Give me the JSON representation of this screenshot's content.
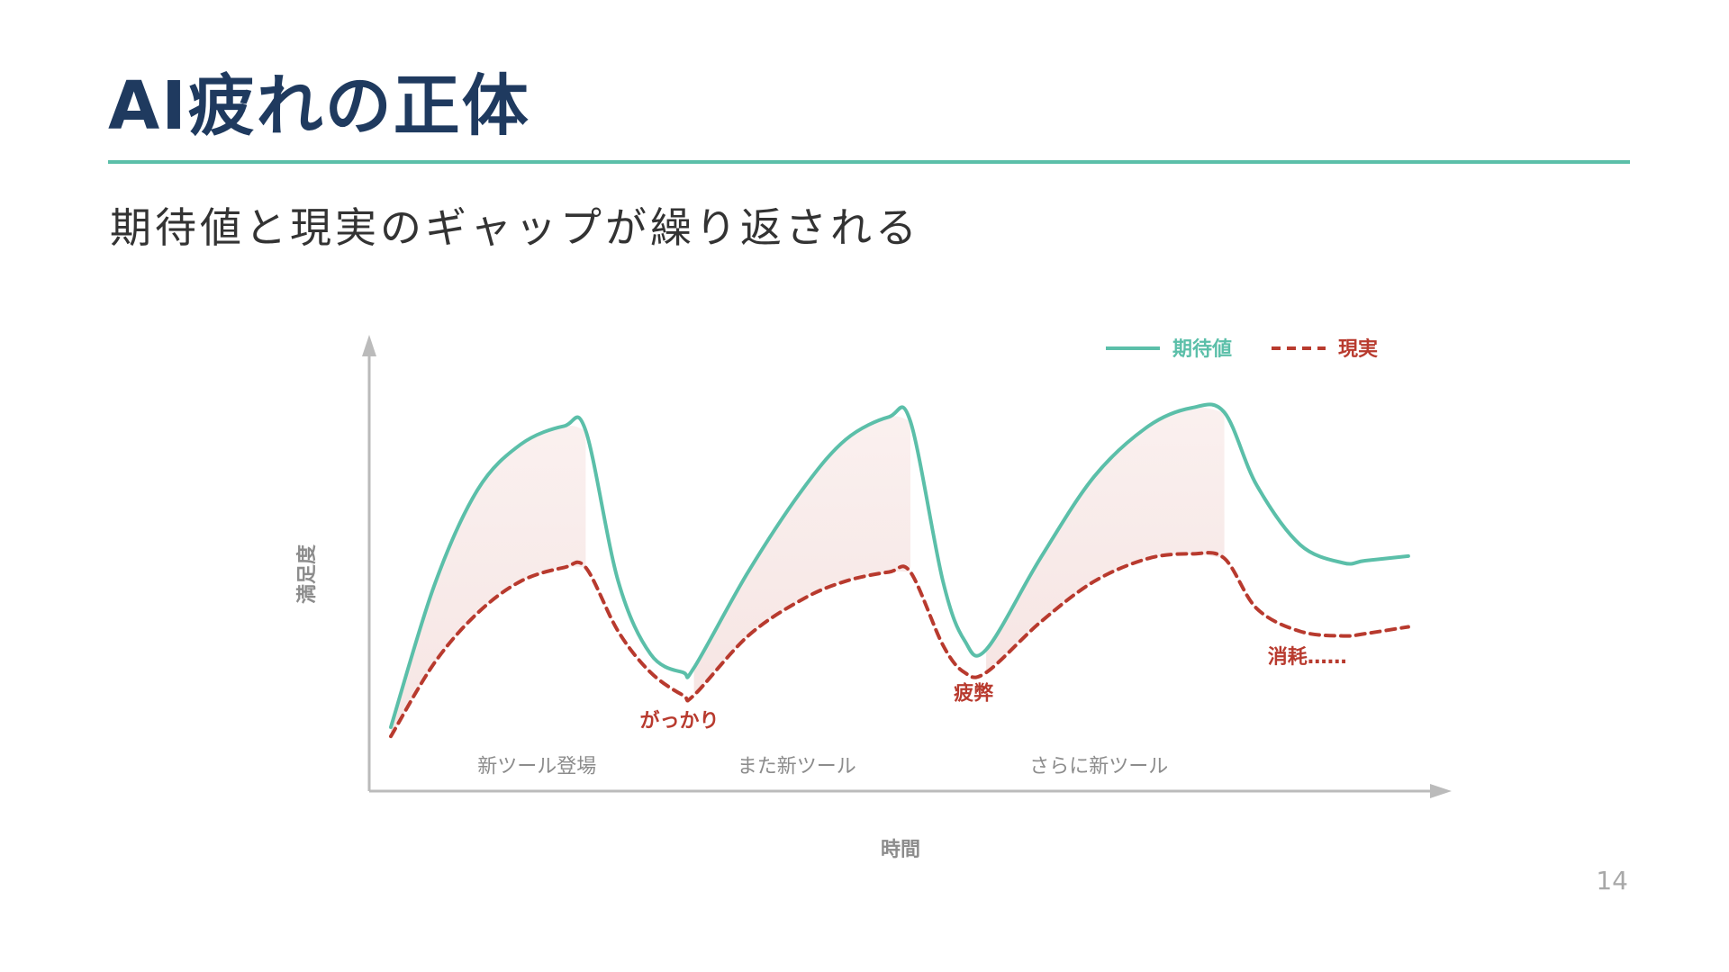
{
  "slide": {
    "title": "AI疲れの正体",
    "subtitle": "期待値と現実のギャップが繰り返される",
    "page_number": "14"
  },
  "colors": {
    "title": "#1f3a5f",
    "accent": "#5bbfa9",
    "expectation": "#5bbfa9",
    "reality": "#b83a2e",
    "gap_fill": "#f6e4e2",
    "axis": "#bbbbbb",
    "muted_text": "#8c8c8c"
  },
  "chart_data": {
    "type": "line",
    "title": "",
    "xlabel": "時間",
    "ylabel": "満足度",
    "xlim": [
      0,
      100
    ],
    "ylim": [
      0,
      100
    ],
    "grid": false,
    "legend_position": "top-right",
    "legend": [
      {
        "series": "expectation",
        "label": "期待値",
        "style": "solid"
      },
      {
        "series": "reality",
        "label": "現実",
        "style": "dashed"
      }
    ],
    "series": [
      {
        "name": "expectation",
        "label": "期待値",
        "points": [
          [
            2,
            14
          ],
          [
            6,
            45
          ],
          [
            10,
            66
          ],
          [
            14,
            76
          ],
          [
            18,
            80
          ],
          [
            20,
            79
          ],
          [
            23,
            46
          ],
          [
            26,
            30
          ],
          [
            29,
            26
          ],
          [
            30,
            27
          ],
          [
            35,
            48
          ],
          [
            40,
            66
          ],
          [
            44,
            77
          ],
          [
            48,
            82
          ],
          [
            50,
            81
          ],
          [
            53,
            46
          ],
          [
            55,
            33
          ],
          [
            57,
            31
          ],
          [
            62,
            51
          ],
          [
            67,
            69
          ],
          [
            72,
            80
          ],
          [
            76,
            84
          ],
          [
            79,
            83
          ],
          [
            82,
            67
          ],
          [
            86,
            54
          ],
          [
            90,
            50
          ],
          [
            92,
            50.5
          ],
          [
            96,
            51.5
          ]
        ]
      },
      {
        "name": "reality",
        "label": "現実",
        "points": [
          [
            2,
            12
          ],
          [
            6,
            28
          ],
          [
            10,
            39
          ],
          [
            14,
            46
          ],
          [
            18,
            49
          ],
          [
            20,
            49
          ],
          [
            23,
            35
          ],
          [
            26,
            26
          ],
          [
            29,
            21
          ],
          [
            30,
            21
          ],
          [
            35,
            34
          ],
          [
            40,
            42
          ],
          [
            44,
            46
          ],
          [
            48,
            48
          ],
          [
            50,
            48
          ],
          [
            53,
            32
          ],
          [
            55,
            26
          ],
          [
            57,
            26
          ],
          [
            62,
            37
          ],
          [
            67,
            46
          ],
          [
            72,
            51
          ],
          [
            76,
            52
          ],
          [
            79,
            51
          ],
          [
            82,
            40
          ],
          [
            86,
            35
          ],
          [
            90,
            34
          ],
          [
            92,
            34.5
          ],
          [
            96,
            36
          ]
        ]
      }
    ],
    "gap_ranges": [
      [
        2,
        20
      ],
      [
        30,
        50
      ],
      [
        57,
        79
      ]
    ],
    "annotations": [
      {
        "text": "がっかり",
        "x": 25,
        "y": 14,
        "color": "reality"
      },
      {
        "text": "疲弊",
        "x": 54,
        "y": 20,
        "color": "reality"
      },
      {
        "text": "消耗……",
        "x": 83,
        "y": 28,
        "color": "reality"
      },
      {
        "text": "新ツール登場",
        "x": 10,
        "y": 4,
        "color": "muted_text"
      },
      {
        "text": "また新ツール",
        "x": 34,
        "y": 4,
        "color": "muted_text"
      },
      {
        "text": "さらに新ツール",
        "x": 61,
        "y": 4,
        "color": "muted_text"
      }
    ]
  }
}
